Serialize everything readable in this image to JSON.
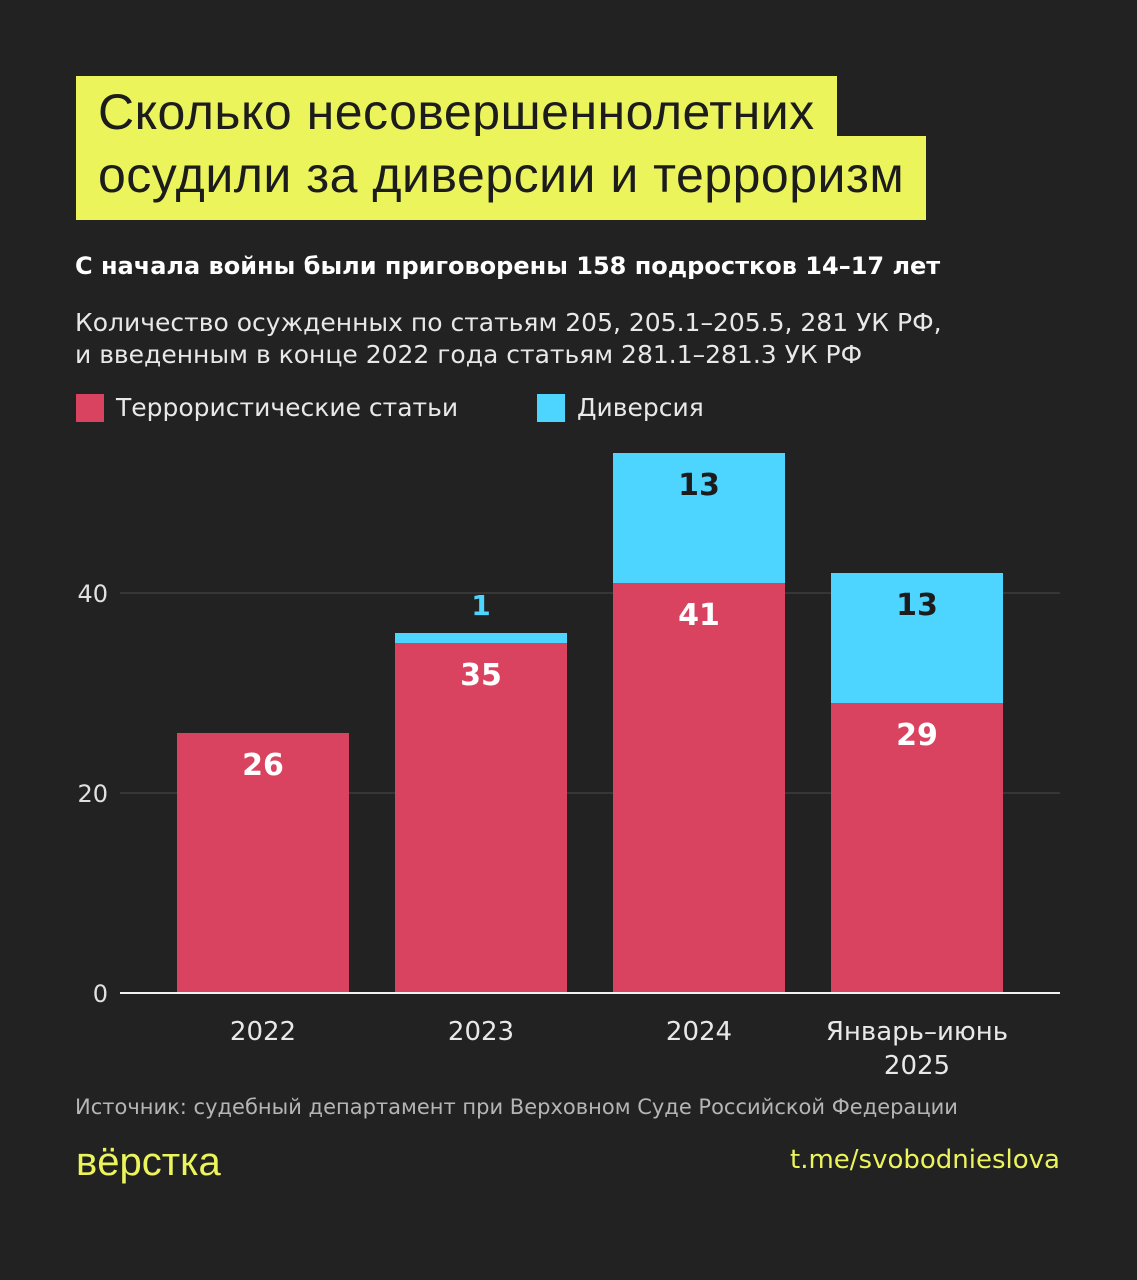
{
  "header": {
    "title_line1": "Сколько несовершеннолетних",
    "title_line2": "осудили за диверсии и терроризм",
    "subtitle": "С начала войны были приговорены 158 подростков 14–17 лет",
    "description_line1": "Количество осужденных по статьям 205, 205.1–205.5, 281 УК РФ,",
    "description_line2": "и введенным в конце 2022 года статьям 281.1–281.3 УК РФ"
  },
  "colors": {
    "background": "#222222",
    "accent": "#ecf45c",
    "terror": "#d9435f",
    "sabotage": "#4dd4ff"
  },
  "chart_data": {
    "type": "bar",
    "stacked": true,
    "categories": [
      "2022",
      "2023",
      "2024",
      "Январь–июнь 2025"
    ],
    "series": [
      {
        "name": "Террористические статьи",
        "values": [
          26,
          35,
          41,
          29
        ],
        "color": "#d9435f"
      },
      {
        "name": "Диверсия",
        "values": [
          0,
          1,
          13,
          13
        ],
        "color": "#4dd4ff"
      }
    ],
    "yticks": [
      0,
      20,
      40
    ],
    "ylim": [
      0,
      58
    ],
    "grid": true,
    "legend": "top-left"
  },
  "footer": {
    "source": "Источник: судебный департамент при Верховном Суде Российской Федерации",
    "logo": "вёрстка",
    "link": "t.me/svobodnieslova"
  }
}
